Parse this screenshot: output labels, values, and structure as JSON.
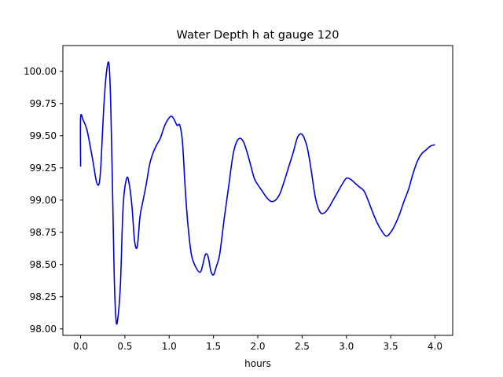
{
  "chart_data": {
    "type": "line",
    "title": "Water Depth h at gauge 120",
    "xlabel": "hours",
    "ylabel": "",
    "xlim": [
      -0.2,
      4.2
    ],
    "ylim": [
      97.95,
      100.2
    ],
    "xticks": [
      0.0,
      0.5,
      1.0,
      1.5,
      2.0,
      2.5,
      3.0,
      3.5,
      4.0
    ],
    "xtick_labels": [
      "0.0",
      "0.5",
      "1.0",
      "1.5",
      "2.0",
      "2.5",
      "3.0",
      "3.5",
      "4.0"
    ],
    "yticks": [
      98.0,
      98.25,
      98.5,
      98.75,
      99.0,
      99.25,
      99.5,
      99.75,
      100.0
    ],
    "ytick_labels": [
      "98.00",
      "98.25",
      "98.50",
      "98.75",
      "99.00",
      "99.25",
      "99.50",
      "99.75",
      "100.00"
    ],
    "grid": false,
    "series": [
      {
        "color": "#0000dd",
        "x": [
          0.0,
          0.0,
          0.03,
          0.07,
          0.1,
          0.14,
          0.18,
          0.21,
          0.23,
          0.26,
          0.29,
          0.32,
          0.34,
          0.36,
          0.38,
          0.4,
          0.42,
          0.45,
          0.48,
          0.52,
          0.55,
          0.58,
          0.61,
          0.64,
          0.67,
          0.7,
          0.74,
          0.78,
          0.82,
          0.86,
          0.9,
          0.95,
          1.0,
          1.03,
          1.06,
          1.09,
          1.12,
          1.15,
          1.18,
          1.21,
          1.25,
          1.3,
          1.35,
          1.38,
          1.41,
          1.44,
          1.47,
          1.5,
          1.53,
          1.57,
          1.62,
          1.67,
          1.72,
          1.76,
          1.8,
          1.84,
          1.88,
          1.92,
          1.96,
          2.0,
          2.05,
          2.1,
          2.15,
          2.2,
          2.25,
          2.3,
          2.35,
          2.4,
          2.45,
          2.5,
          2.55,
          2.58,
          2.61,
          2.65,
          2.7,
          2.75,
          2.8,
          2.85,
          2.9,
          2.95,
          3.0,
          3.05,
          3.1,
          3.15,
          3.2,
          3.25,
          3.3,
          3.35,
          3.4,
          3.45,
          3.5,
          3.55,
          3.6,
          3.65,
          3.7,
          3.75,
          3.8,
          3.85,
          3.9,
          3.95,
          4.0
        ],
        "y": [
          99.26,
          99.64,
          99.62,
          99.55,
          99.45,
          99.3,
          99.14,
          99.13,
          99.28,
          99.7,
          99.98,
          100.06,
          99.75,
          99.1,
          98.4,
          98.07,
          98.08,
          98.35,
          98.95,
          99.17,
          99.12,
          98.95,
          98.68,
          98.64,
          98.87,
          98.98,
          99.12,
          99.28,
          99.37,
          99.43,
          99.48,
          99.58,
          99.64,
          99.65,
          99.62,
          99.58,
          99.58,
          99.45,
          99.1,
          98.82,
          98.58,
          98.48,
          98.44,
          98.5,
          98.58,
          98.56,
          98.45,
          98.42,
          98.48,
          98.58,
          98.85,
          99.1,
          99.35,
          99.45,
          99.48,
          99.45,
          99.37,
          99.27,
          99.17,
          99.12,
          99.07,
          99.02,
          98.99,
          99.0,
          99.05,
          99.15,
          99.26,
          99.37,
          99.49,
          99.51,
          99.43,
          99.33,
          99.2,
          99.02,
          98.91,
          98.9,
          98.94,
          99.0,
          99.06,
          99.12,
          99.17,
          99.16,
          99.13,
          99.1,
          99.07,
          98.99,
          98.9,
          98.82,
          98.76,
          98.72,
          98.75,
          98.81,
          98.89,
          98.99,
          99.08,
          99.2,
          99.3,
          99.36,
          99.39,
          99.42,
          99.43
        ]
      }
    ]
  }
}
